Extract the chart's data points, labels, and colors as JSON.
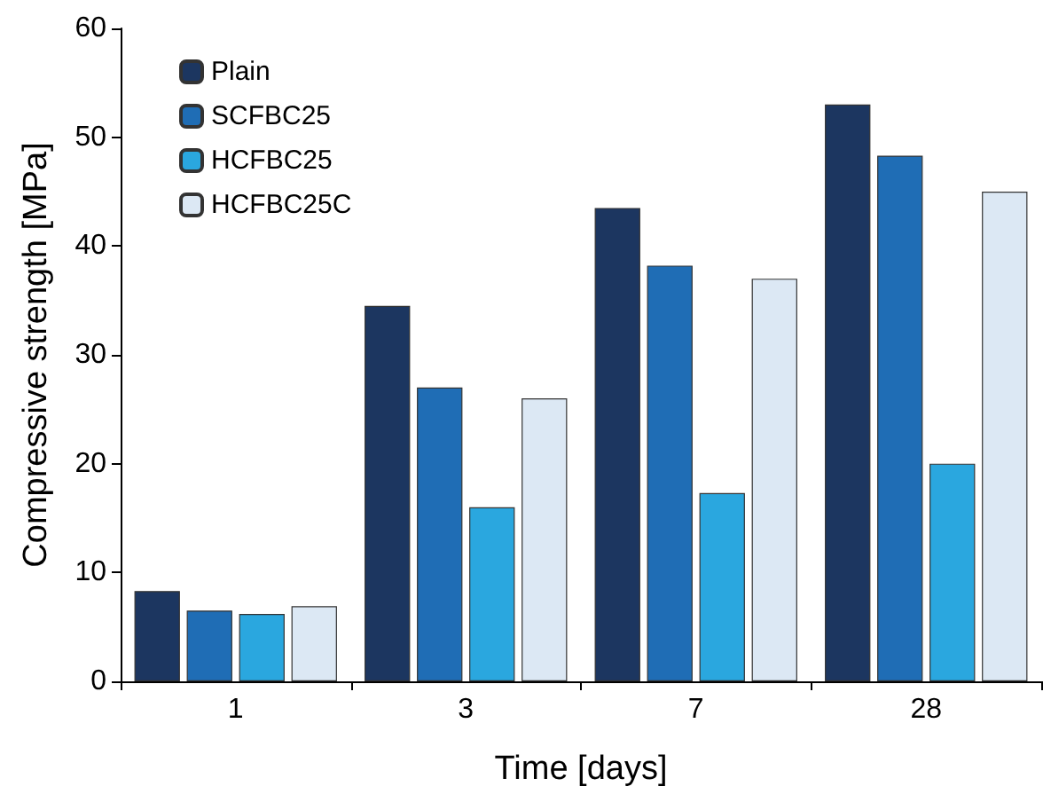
{
  "chart_data": {
    "type": "bar",
    "xlabel": "Time [days]",
    "ylabel": "Compressive strength [MPa]",
    "categories": [
      "1",
      "3",
      "7",
      "28"
    ],
    "series": [
      {
        "name": "Plain",
        "color": "#1c3660",
        "values": [
          8.3,
          34.5,
          43.5,
          53
        ]
      },
      {
        "name": "SCFBC25",
        "color": "#1f6db5",
        "values": [
          6.5,
          27,
          38.2,
          48.3
        ]
      },
      {
        "name": "HCFBC25",
        "color": "#2aa7df",
        "values": [
          6.2,
          16,
          17.3,
          20
        ]
      },
      {
        "name": "HCFBC25C",
        "color": "#dce8f4",
        "values": [
          6.9,
          26,
          37,
          45
        ]
      }
    ],
    "ylim": [
      0,
      60
    ],
    "yticks": [
      0,
      10,
      20,
      30,
      40,
      50,
      60
    ],
    "grid": false,
    "legend": "top left"
  }
}
